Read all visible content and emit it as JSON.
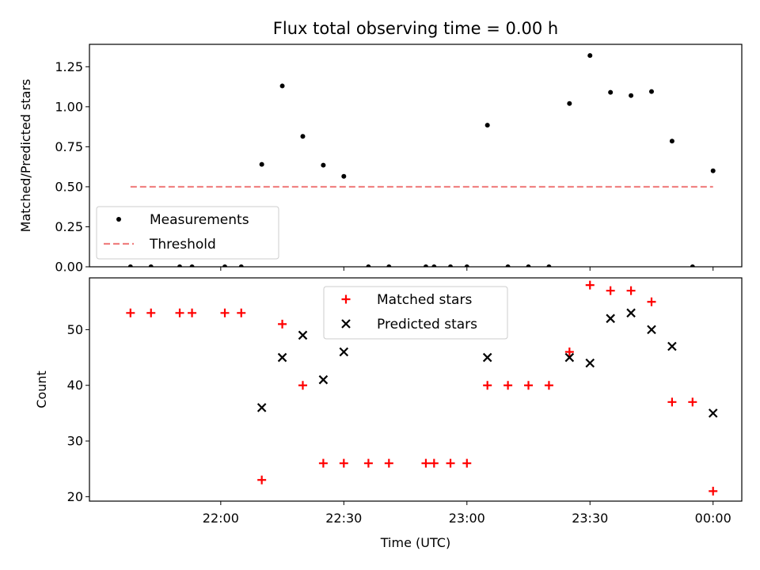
{
  "chart_data": [
    {
      "type": "scatter",
      "title": "Flux total observing time = 0.00 h",
      "ylabel": "Matched/Predicted stars",
      "xlabel": "",
      "ylim": [
        0,
        1.39
      ],
      "yticks": [
        0.0,
        0.25,
        0.5,
        0.75,
        1.0,
        1.25
      ],
      "ytick_labels": [
        "0.00",
        "0.25",
        "0.50",
        "0.75",
        "1.00",
        "1.25"
      ],
      "x_axis": "time",
      "xlim": [
        "21:28",
        "00:07"
      ],
      "xticks": [
        "22:00",
        "22:30",
        "23:00",
        "23:30",
        "00:00"
      ],
      "legend": {
        "position": "lower left",
        "entries": [
          {
            "label": "Measurements",
            "marker": "dot",
            "color": "#000000"
          },
          {
            "label": "Threshold",
            "marker": "dashed-line",
            "color": "#f08080"
          }
        ]
      },
      "series": [
        {
          "name": "Measurements",
          "color": "#000000",
          "points": [
            [
              "21:38",
              0.0
            ],
            [
              "21:43",
              0.0
            ],
            [
              "21:50",
              0.0
            ],
            [
              "21:53",
              0.0
            ],
            [
              "22:01",
              0.0
            ],
            [
              "22:05",
              0.0
            ],
            [
              "22:10",
              0.64
            ],
            [
              "22:15",
              1.13
            ],
            [
              "22:20",
              0.815
            ],
            [
              "22:25",
              0.635
            ],
            [
              "22:30",
              0.565
            ],
            [
              "22:36",
              0.0
            ],
            [
              "22:41",
              0.0
            ],
            [
              "22:50",
              0.0
            ],
            [
              "22:52",
              0.0
            ],
            [
              "22:56",
              0.0
            ],
            [
              "23:00",
              0.0
            ],
            [
              "23:05",
              0.885
            ],
            [
              "23:10",
              0.0
            ],
            [
              "23:15",
              0.0
            ],
            [
              "23:20",
              0.0
            ],
            [
              "23:25",
              1.02
            ],
            [
              "23:30",
              1.32
            ],
            [
              "23:35",
              1.09
            ],
            [
              "23:40",
              1.07
            ],
            [
              "23:45",
              1.095
            ],
            [
              "23:50",
              0.785
            ],
            [
              "23:55",
              0.0
            ],
            [
              "00:00",
              0.6
            ]
          ]
        },
        {
          "name": "Threshold",
          "color": "#f08080",
          "points": [
            [
              "21:38",
              0.5
            ],
            [
              "00:00",
              0.5
            ]
          ]
        }
      ]
    },
    {
      "type": "scatter",
      "title": "",
      "ylabel": "Count",
      "xlabel": "Time (UTC)",
      "ylim": [
        19.2,
        59.3
      ],
      "yticks": [
        20,
        30,
        40,
        50
      ],
      "ytick_labels": [
        "20",
        "30",
        "40",
        "50"
      ],
      "x_axis": "time",
      "xlim": [
        "21:28",
        "00:07"
      ],
      "xticks": [
        "22:00",
        "22:30",
        "23:00",
        "23:30",
        "00:00"
      ],
      "legend": {
        "position": "upper center",
        "entries": [
          {
            "label": "Matched stars",
            "marker": "plus",
            "color": "#ff0000"
          },
          {
            "label": "Predicted stars",
            "marker": "x",
            "color": "#000000"
          }
        ]
      },
      "series": [
        {
          "name": "Matched stars",
          "color": "#ff0000",
          "points": [
            [
              "21:38",
              53
            ],
            [
              "21:43",
              53
            ],
            [
              "21:50",
              53
            ],
            [
              "21:53",
              53
            ],
            [
              "22:01",
              53
            ],
            [
              "22:05",
              53
            ],
            [
              "22:10",
              23
            ],
            [
              "22:15",
              51
            ],
            [
              "22:20",
              40
            ],
            [
              "22:25",
              26
            ],
            [
              "22:30",
              26
            ],
            [
              "22:36",
              26
            ],
            [
              "22:41",
              26
            ],
            [
              "22:50",
              26
            ],
            [
              "22:52",
              26
            ],
            [
              "22:56",
              26
            ],
            [
              "23:00",
              26
            ],
            [
              "23:05",
              40
            ],
            [
              "23:10",
              40
            ],
            [
              "23:15",
              40
            ],
            [
              "23:20",
              40
            ],
            [
              "23:25",
              46
            ],
            [
              "23:30",
              58
            ],
            [
              "23:35",
              57
            ],
            [
              "23:40",
              57
            ],
            [
              "23:45",
              55
            ],
            [
              "23:50",
              37
            ],
            [
              "23:55",
              37
            ],
            [
              "00:00",
              21
            ]
          ]
        },
        {
          "name": "Predicted stars",
          "color": "#000000",
          "points": [
            [
              "22:10",
              36
            ],
            [
              "22:15",
              45
            ],
            [
              "22:20",
              49
            ],
            [
              "22:25",
              41
            ],
            [
              "22:30",
              46
            ],
            [
              "23:05",
              45
            ],
            [
              "23:25",
              45
            ],
            [
              "23:30",
              44
            ],
            [
              "23:35",
              52
            ],
            [
              "23:40",
              53
            ],
            [
              "23:45",
              50
            ],
            [
              "23:50",
              47
            ],
            [
              "00:00",
              35
            ]
          ]
        }
      ]
    }
  ]
}
